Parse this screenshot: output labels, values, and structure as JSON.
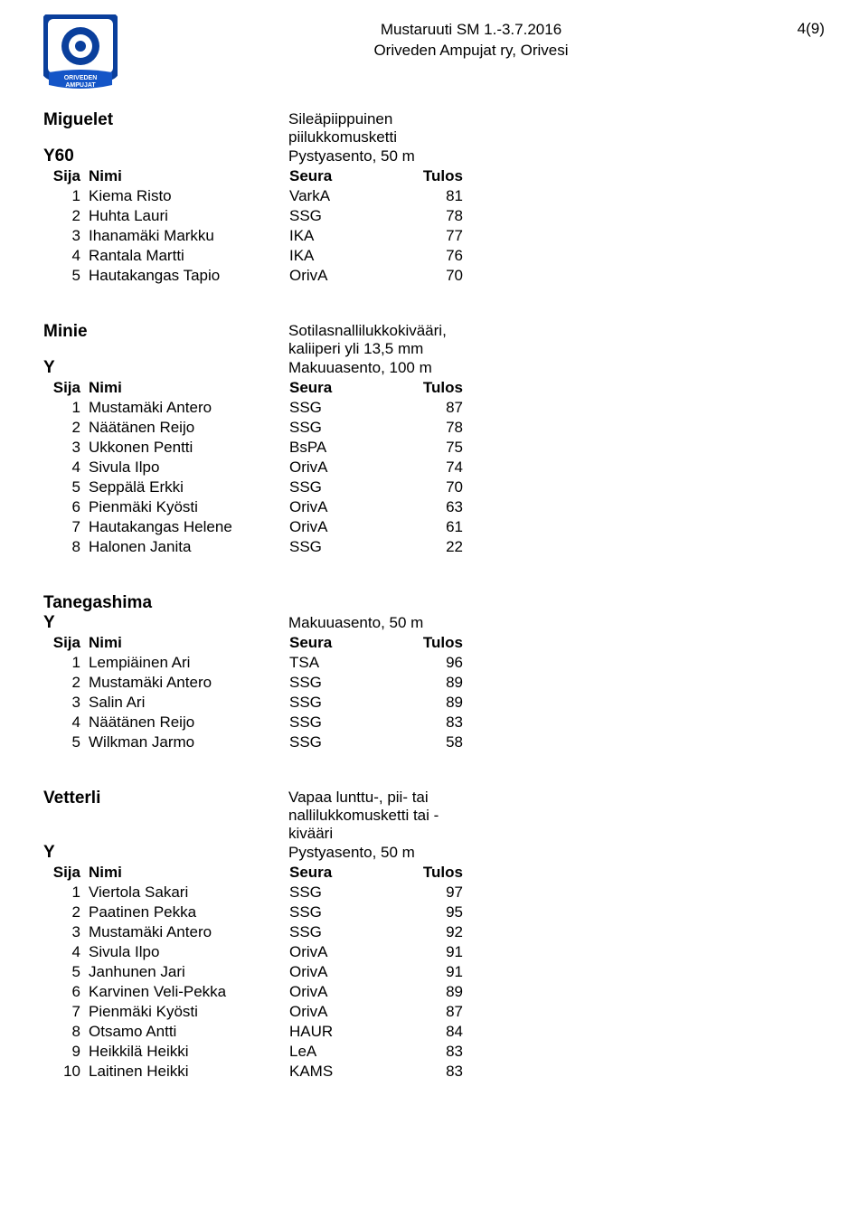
{
  "header": {
    "line1": "Mustaruuti SM 1.-3.7.2016",
    "line2": "Oriveden Ampujat ry, Orivesi",
    "page_num": "4(9)"
  },
  "logo": {
    "ring_color": "#0a3f9c",
    "inner_bg": "#ffffff",
    "banner_color": "#1455c7",
    "banner_text": "ORIVEDEN AMPUJAT",
    "banner_text_color": "#ffffff"
  },
  "columns": {
    "sija": "Sija",
    "nimi": "Nimi",
    "seura": "Seura",
    "tulos": "Tulos"
  },
  "sections": [
    {
      "event": "Miguelet",
      "event_desc": "Sileäpiippuinen piilukkomusketti",
      "class": "Y60",
      "class_desc": "Pystyasento, 50 m",
      "rows": [
        {
          "sija": "1",
          "nimi": "Kiema Risto",
          "seura": "VarkA",
          "tulos": "81"
        },
        {
          "sija": "2",
          "nimi": "Huhta Lauri",
          "seura": "SSG",
          "tulos": "78"
        },
        {
          "sija": "3",
          "nimi": "Ihanamäki Markku",
          "seura": "IKA",
          "tulos": "77"
        },
        {
          "sija": "4",
          "nimi": "Rantala Martti",
          "seura": "IKA",
          "tulos": "76"
        },
        {
          "sija": "5",
          "nimi": "Hautakangas Tapio",
          "seura": "OrivA",
          "tulos": "70"
        }
      ]
    },
    {
      "event": "Minie",
      "event_desc": "Sotilasnallilukkokivääri, kaliiperi yli 13,5 mm",
      "class": "Y",
      "class_desc": "Makuuasento, 100 m",
      "rows": [
        {
          "sija": "1",
          "nimi": "Mustamäki Antero",
          "seura": "SSG",
          "tulos": "87"
        },
        {
          "sija": "2",
          "nimi": "Näätänen Reijo",
          "seura": "SSG",
          "tulos": "78"
        },
        {
          "sija": "3",
          "nimi": "Ukkonen Pentti",
          "seura": "BsPA",
          "tulos": "75"
        },
        {
          "sija": "4",
          "nimi": "Sivula Ilpo",
          "seura": "OrivA",
          "tulos": "74"
        },
        {
          "sija": "5",
          "nimi": "Seppälä Erkki",
          "seura": "SSG",
          "tulos": "70"
        },
        {
          "sija": "6",
          "nimi": "Pienmäki Kyösti",
          "seura": "OrivA",
          "tulos": "63"
        },
        {
          "sija": "7",
          "nimi": "Hautakangas Helene",
          "seura": "OrivA",
          "tulos": "61"
        },
        {
          "sija": "8",
          "nimi": "Halonen Janita",
          "seura": "SSG",
          "tulos": "22"
        }
      ]
    },
    {
      "event": "Tanegashima",
      "event_desc": "",
      "class": "Y",
      "class_desc": "Makuuasento, 50 m",
      "rows": [
        {
          "sija": "1",
          "nimi": "Lempiäinen Ari",
          "seura": "TSA",
          "tulos": "96"
        },
        {
          "sija": "2",
          "nimi": "Mustamäki Antero",
          "seura": "SSG",
          "tulos": "89"
        },
        {
          "sija": "3",
          "nimi": "Salin Ari",
          "seura": "SSG",
          "tulos": "89"
        },
        {
          "sija": "4",
          "nimi": "Näätänen Reijo",
          "seura": "SSG",
          "tulos": "83"
        },
        {
          "sija": "5",
          "nimi": "Wilkman Jarmo",
          "seura": "SSG",
          "tulos": "58"
        }
      ]
    },
    {
      "event": "Vetterli",
      "event_desc": "Vapaa lunttu-, pii- tai nallilukkomusketti tai -kivääri",
      "class": "Y",
      "class_desc": "Pystyasento, 50 m",
      "rows": [
        {
          "sija": "1",
          "nimi": "Viertola Sakari",
          "seura": "SSG",
          "tulos": "97"
        },
        {
          "sija": "2",
          "nimi": "Paatinen Pekka",
          "seura": "SSG",
          "tulos": "95"
        },
        {
          "sija": "3",
          "nimi": "Mustamäki Antero",
          "seura": "SSG",
          "tulos": "92"
        },
        {
          "sija": "4",
          "nimi": "Sivula Ilpo",
          "seura": "OrivA",
          "tulos": "91"
        },
        {
          "sija": "5",
          "nimi": "Janhunen Jari",
          "seura": "OrivA",
          "tulos": "91"
        },
        {
          "sija": "6",
          "nimi": "Karvinen Veli-Pekka",
          "seura": "OrivA",
          "tulos": "89"
        },
        {
          "sija": "7",
          "nimi": "Pienmäki Kyösti",
          "seura": "OrivA",
          "tulos": "87"
        },
        {
          "sija": "8",
          "nimi": "Otsamo Antti",
          "seura": "HAUR",
          "tulos": "84"
        },
        {
          "sija": "9",
          "nimi": "Heikkilä Heikki",
          "seura": "LeA",
          "tulos": "83"
        },
        {
          "sija": "10",
          "nimi": "Laitinen Heikki",
          "seura": "KAMS",
          "tulos": "83"
        }
      ]
    }
  ]
}
